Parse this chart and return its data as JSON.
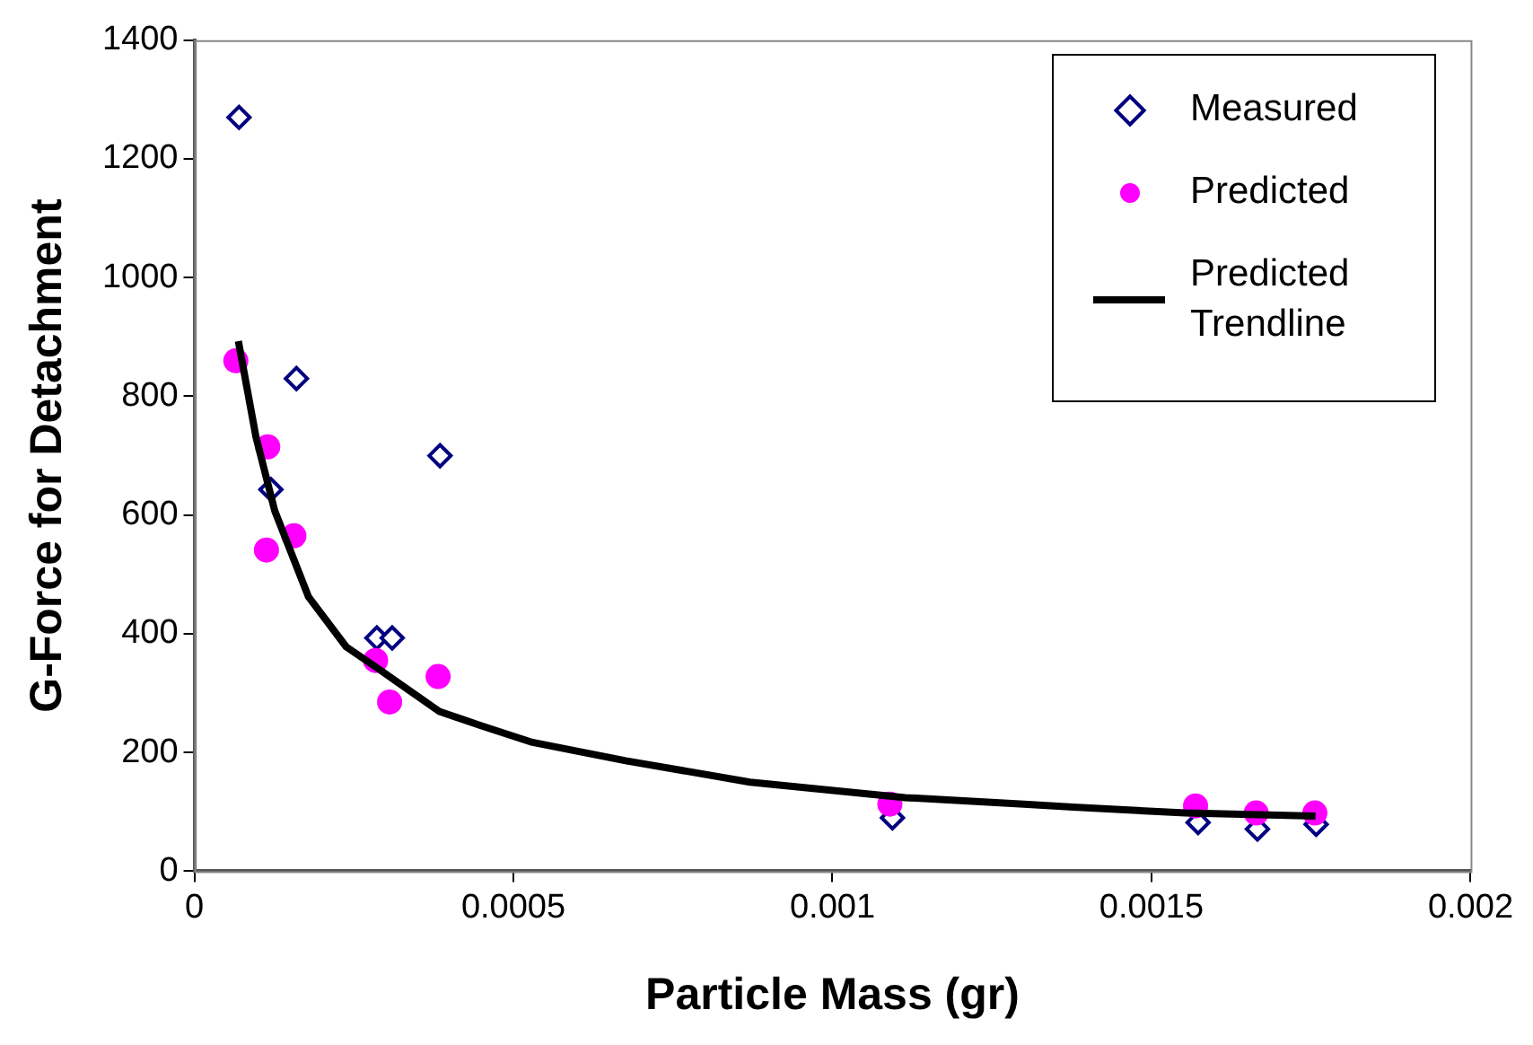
{
  "chart_data": {
    "type": "scatter",
    "xlabel": "Particle Mass (gr)",
    "ylabel": "G-Force for Detachment",
    "xlim": [
      0,
      0.002
    ],
    "xticks": [
      0,
      0.0005,
      0.001,
      0.0015,
      0.002
    ],
    "ylim": [
      0,
      1400
    ],
    "yticks": [
      0,
      200,
      400,
      600,
      800,
      1000,
      1200,
      1400
    ],
    "grid": false,
    "legend": "top right",
    "series": [
      {
        "name": "Measured",
        "type": "scatter",
        "marker": "diamond",
        "color": "#000080",
        "x": [
          7e-05,
          0.00016,
          0.00012,
          0.000385,
          0.000286,
          0.00031,
          0.001094,
          0.001573,
          0.001666,
          0.001758
        ],
        "values": [
          1270,
          830,
          643,
          700,
          393,
          393,
          90,
          82,
          71,
          79
        ]
      },
      {
        "name": "Predicted",
        "type": "scatter",
        "marker": "circle",
        "color": "#ff00ff",
        "x": [
          6.5e-05,
          0.000115,
          0.000113,
          0.000156,
          0.000284,
          0.000306,
          0.000382,
          0.00109,
          0.001569,
          0.001664,
          0.001756
        ],
        "values": [
          860,
          715,
          541,
          565,
          355,
          285,
          328,
          113,
          110,
          98,
          98
        ]
      },
      {
        "name": "Predicted Trendline",
        "type": "line",
        "marker": "none",
        "line_style": "solid",
        "color": "#000000",
        "x": [
          6.9e-05,
          9.65e-05,
          0.000126,
          0.000179,
          0.000238,
          0.000287,
          0.000384,
          0.00045,
          0.00053,
          0.000676,
          0.000871,
          0.001114,
          0.0013,
          0.001377,
          0.001553,
          0.001757
        ],
        "values": [
          893,
          732,
          607,
          462,
          378,
          342,
          269,
          245,
          217,
          186,
          150,
          124,
          113,
          108,
          98,
          93
        ]
      }
    ]
  }
}
